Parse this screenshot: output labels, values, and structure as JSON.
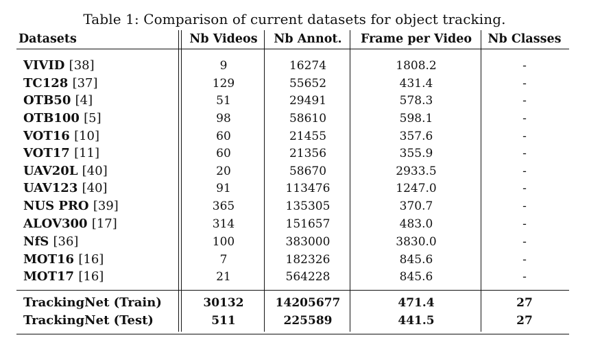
{
  "caption": "Table 1: Comparison of current datasets for object tracking.",
  "columns": [
    "Datasets",
    "Nb Videos",
    "Nb Annot.",
    "Frame per Video",
    "Nb Classes"
  ],
  "rows": [
    {
      "name": "VIVID",
      "ref": "[38]",
      "videos": "9",
      "annot": "16274",
      "fpv": "1808.2",
      "classes": "-"
    },
    {
      "name": "TC128",
      "ref": "[37]",
      "videos": "129",
      "annot": "55652",
      "fpv": "431.4",
      "classes": "-"
    },
    {
      "name": "OTB50",
      "ref": "[4]",
      "videos": "51",
      "annot": "29491",
      "fpv": "578.3",
      "classes": "-"
    },
    {
      "name": "OTB100",
      "ref": "[5]",
      "videos": "98",
      "annot": "58610",
      "fpv": "598.1",
      "classes": "-"
    },
    {
      "name": "VOT16",
      "ref": "[10]",
      "videos": "60",
      "annot": "21455",
      "fpv": "357.6",
      "classes": "-"
    },
    {
      "name": "VOT17",
      "ref": "[11]",
      "videos": "60",
      "annot": "21356",
      "fpv": "355.9",
      "classes": "-"
    },
    {
      "name": "UAV20L",
      "ref": "[40]",
      "videos": "20",
      "annot": "58670",
      "fpv": "2933.5",
      "classes": "-"
    },
    {
      "name": "UAV123",
      "ref": "[40]",
      "videos": "91",
      "annot": "113476",
      "fpv": "1247.0",
      "classes": "-"
    },
    {
      "name": "NUS PRO",
      "ref": "[39]",
      "videos": "365",
      "annot": "135305",
      "fpv": "370.7",
      "classes": "-"
    },
    {
      "name": "ALOV300",
      "ref": "[17]",
      "videos": "314",
      "annot": "151657",
      "fpv": "483.0",
      "classes": "-"
    },
    {
      "name": "NfS",
      "ref": "[36]",
      "videos": "100",
      "annot": "383000",
      "fpv": "3830.0",
      "classes": "-"
    },
    {
      "name": "MOT16",
      "ref": "[16]",
      "videos": "7",
      "annot": "182326",
      "fpv": "845.6",
      "classes": "-"
    },
    {
      "name": "MOT17",
      "ref": "[16]",
      "videos": "21",
      "annot": "564228",
      "fpv": "845.6",
      "classes": "-"
    }
  ],
  "footer_rows": [
    {
      "name": "TrackingNet (Train)",
      "videos": "30132",
      "annot": "14205677",
      "fpv": "471.4",
      "classes": "27"
    },
    {
      "name": "TrackingNet (Test)",
      "videos": "511",
      "annot": "225589",
      "fpv": "441.5",
      "classes": "27"
    }
  ]
}
